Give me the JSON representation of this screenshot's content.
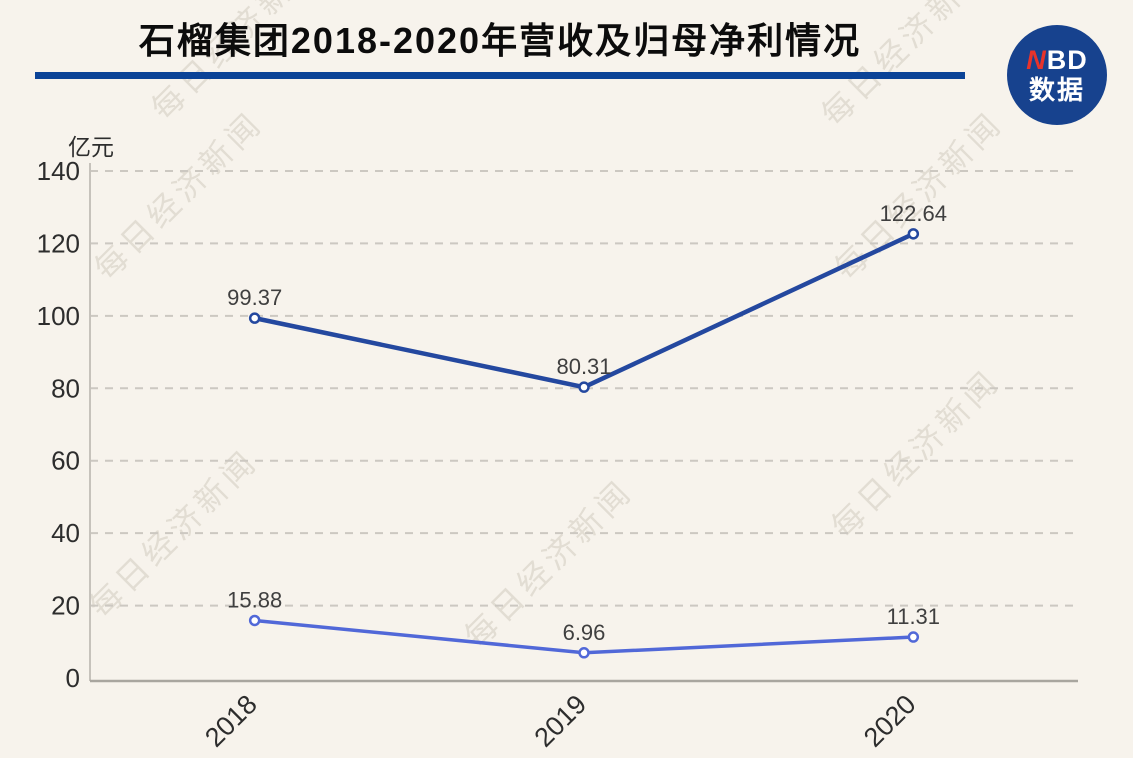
{
  "header": {
    "title": "石榴集团2018-2020年营收及归母净利情况",
    "logo": {
      "nbd_n": "N",
      "nbd_bd": "BD",
      "cn": "数据"
    }
  },
  "watermark": {
    "text": "每日经济新闻"
  },
  "chart_data": {
    "type": "line",
    "title": "石榴集团2018-2020年营收及归母净利情况",
    "unit_label": "亿元",
    "xlabel": "",
    "ylabel": "亿元",
    "categories": [
      "2018",
      "2019",
      "2020"
    ],
    "series": [
      {
        "name": "营收",
        "values": [
          99.37,
          80.31,
          122.64
        ],
        "labels": [
          "99.37",
          "80.31",
          "122.64"
        ],
        "color": "#24489f"
      },
      {
        "name": "归母净利",
        "values": [
          15.88,
          6.96,
          11.31
        ],
        "labels": [
          "15.88",
          "6.96",
          "11.31"
        ],
        "color": "#5168d8"
      }
    ],
    "ylim": [
      0,
      140
    ],
    "yticks": [
      0,
      20,
      40,
      60,
      80,
      100,
      120,
      140
    ],
    "grid": "horizontal-dashed",
    "legend": "none",
    "x_label_rotation": -45
  },
  "colors": {
    "background": "#f7f3ec",
    "title_underline": "#0b4397",
    "logo_circle": "#17428e",
    "logo_n_red": "#e8332b",
    "series_dark": "#24489f",
    "series_light": "#5168d8",
    "gridline": "#ccc8c1",
    "y_axis_line": "#c6c2bb",
    "x_axis_line": "#a9a69f",
    "tick_text": "#2d2d2d",
    "data_label_text": "#3f3f3f",
    "watermark": "#c9c3b6"
  }
}
